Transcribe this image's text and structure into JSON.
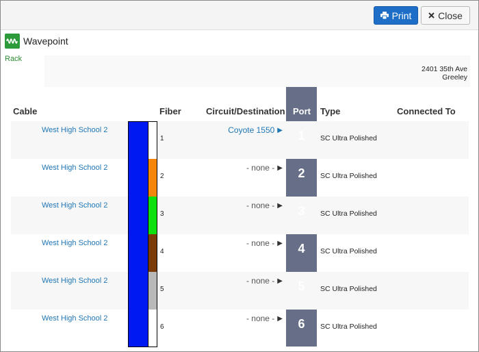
{
  "toolbar": {
    "print_label": "Print",
    "close_label": "Close"
  },
  "brand": {
    "name": "Wavepoint",
    "rack_link": "Rack"
  },
  "address": {
    "street": "2401 35th Ave",
    "city": "Greeley"
  },
  "table": {
    "headers": {
      "cable": "Cable",
      "fiber": "Fiber",
      "circuit": "Circuit/Destination",
      "port": "Port",
      "type": "Type",
      "connected_to": "Connected To"
    },
    "rows": [
      {
        "cable": "West High School 2",
        "fiber": "1",
        "fiber_color": "#ffffff",
        "circuit": "Coyote 1550",
        "circuit_linked": true,
        "port": "1",
        "type": "SC Ultra Polished"
      },
      {
        "cable": "West High School 2",
        "fiber": "2",
        "fiber_color": "#f5860a",
        "circuit": "- none -",
        "circuit_linked": false,
        "port": "2",
        "type": "SC Ultra Polished"
      },
      {
        "cable": "West High School 2",
        "fiber": "3",
        "fiber_color": "#0ee00e",
        "circuit": "- none -",
        "circuit_linked": false,
        "port": "3",
        "type": "SC Ultra Polished"
      },
      {
        "cable": "West High School 2",
        "fiber": "4",
        "fiber_color": "#7a3b08",
        "circuit": "- none -",
        "circuit_linked": false,
        "port": "4",
        "type": "SC Ultra Polished"
      },
      {
        "cable": "West High School 2",
        "fiber": "5",
        "fiber_color": "#b8b8b8",
        "circuit": "- none -",
        "circuit_linked": false,
        "port": "5",
        "type": "SC Ultra Polished"
      },
      {
        "cable": "West High School 2",
        "fiber": "6",
        "fiber_color": "#ffffff",
        "circuit": "- none -",
        "circuit_linked": false,
        "port": "6",
        "type": "SC Ultra Polished"
      }
    ]
  },
  "colors": {
    "jacket": "#0019f0",
    "port_column": "#666f87",
    "link": "#1f76b5",
    "print_button": "#1e6ec8"
  },
  "icons": {
    "print": "printer-icon",
    "close": "close-icon",
    "logo": "wave-logo-icon",
    "arrow": "play-arrow-icon"
  }
}
